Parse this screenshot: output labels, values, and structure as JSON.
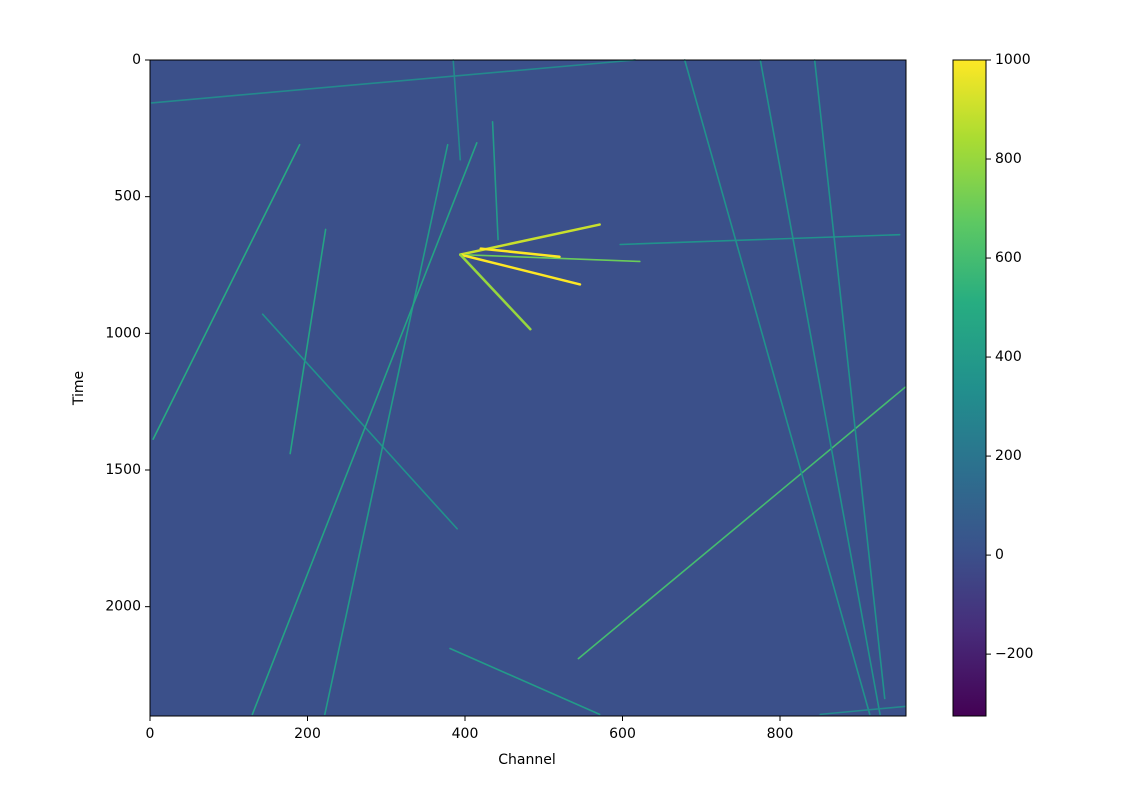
{
  "chart_data": {
    "type": "image",
    "colormap": "viridis",
    "background_value": 0,
    "xlabel": "Channel",
    "ylabel": "Time",
    "xlim": [
      0,
      960
    ],
    "ylim": [
      2400,
      0
    ],
    "xticks": [
      0,
      200,
      400,
      600,
      800
    ],
    "yticks": [
      0,
      500,
      1000,
      1500,
      2000
    ],
    "clim": [
      -325,
      1000
    ],
    "cticks": [
      {
        "value": -200,
        "label": "−200"
      },
      0,
      200,
      400,
      600,
      800,
      1000
    ],
    "tracks": [
      {
        "x": [
          2,
          616
        ],
        "y": [
          157,
          0
        ],
        "value": 300
      },
      {
        "x": [
          190,
          4
        ],
        "y": [
          310,
          1387
        ],
        "value": 500
      },
      {
        "x": [
          223,
          178
        ],
        "y": [
          620,
          1440
        ],
        "value": 450
      },
      {
        "x": [
          143,
          390
        ],
        "y": [
          930,
          1715
        ],
        "value": 350
      },
      {
        "x": [
          378,
          222
        ],
        "y": [
          310,
          2394
        ],
        "value": 400
      },
      {
        "x": [
          415,
          130
        ],
        "y": [
          303,
          2394
        ],
        "value": 450
      },
      {
        "x": [
          385,
          394
        ],
        "y": [
          0,
          365
        ],
        "value": 300
      },
      {
        "x": [
          435,
          442
        ],
        "y": [
          226,
          657
        ],
        "value": 400
      },
      {
        "x": [
          597,
          952
        ],
        "y": [
          675,
          639
        ],
        "value": 350
      },
      {
        "x": [
          544,
          959
        ],
        "y": [
          2190,
          1197
        ],
        "value": 600
      },
      {
        "x": [
          381,
          571
        ],
        "y": [
          2153,
          2394
        ],
        "value": 400
      },
      {
        "x": [
          679,
          914
        ],
        "y": [
          0,
          2394
        ],
        "value": 350
      },
      {
        "x": [
          775,
          927
        ],
        "y": [
          0,
          2394
        ],
        "value": 350
      },
      {
        "x": [
          844,
          933
        ],
        "y": [
          0,
          2336
        ],
        "value": 350
      },
      {
        "x": [
          851,
          959
        ],
        "y": [
          2394,
          2365
        ],
        "value": 300
      },
      {
        "x": [
          394,
          571
        ],
        "y": [
          712,
          602
        ],
        "value": 900
      },
      {
        "x": [
          394,
          622
        ],
        "y": [
          712,
          737
        ],
        "value": 700
      },
      {
        "x": [
          394,
          546
        ],
        "y": [
          712,
          821
        ],
        "value": 1000
      },
      {
        "x": [
          394,
          483
        ],
        "y": [
          712,
          985
        ],
        "value": 800
      },
      {
        "x": [
          420,
          520
        ],
        "y": [
          690,
          720
        ],
        "value": 1000
      }
    ]
  }
}
